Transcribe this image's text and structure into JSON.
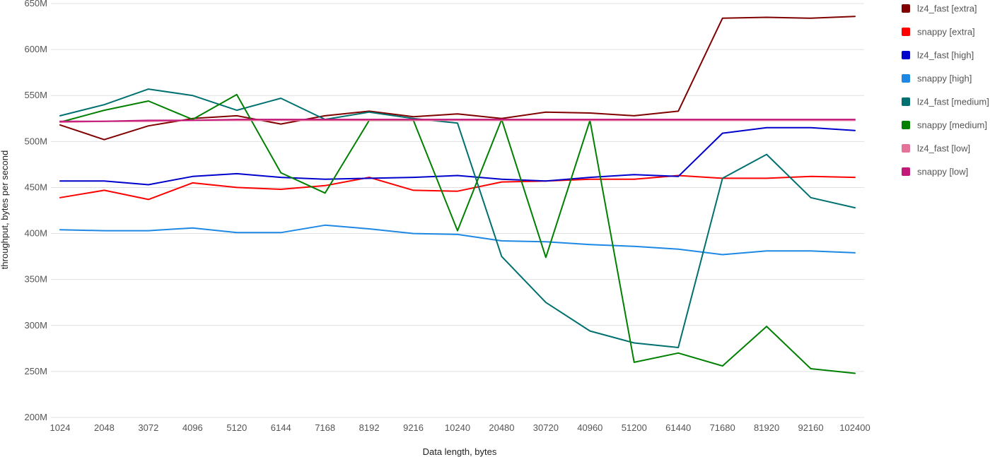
{
  "chart_data": {
    "type": "line",
    "title": "",
    "xlabel": "Data length, bytes",
    "ylabel": "throughput, bytes per second",
    "ylim": [
      200,
      650
    ],
    "y_unit_suffix": "M",
    "y_ticks": [
      200,
      250,
      300,
      350,
      400,
      450,
      500,
      550,
      600,
      650
    ],
    "y_tick_labels": [
      "200M",
      "250M",
      "300M",
      "350M",
      "400M",
      "450M",
      "500M",
      "550M",
      "600M",
      "650M"
    ],
    "grid": true,
    "legend_position": "right",
    "categories": [
      "1024",
      "2048",
      "3072",
      "4096",
      "5120",
      "6144",
      "7168",
      "8192",
      "9216",
      "10240",
      "20480",
      "30720",
      "40960",
      "51200",
      "61440",
      "71680",
      "81920",
      "92160",
      "102400"
    ],
    "series": [
      {
        "name": "lz4_fast [extra]",
        "color": "#800000",
        "values": [
          518,
          502,
          517,
          525,
          528,
          519,
          528,
          533,
          527,
          530,
          525,
          532,
          531,
          528,
          533,
          634,
          635,
          634,
          636
        ]
      },
      {
        "name": "snappy [extra]",
        "color": "#ff0000",
        "values": [
          439,
          447,
          437,
          455,
          450,
          448,
          452,
          461,
          447,
          446,
          456,
          457,
          459,
          459,
          463,
          460,
          460,
          462,
          461
        ]
      },
      {
        "name": "lz4_fast [high]",
        "color": "#0000cc",
        "values": [
          457,
          457,
          453,
          462,
          465,
          461,
          459,
          460,
          461,
          463,
          459,
          457,
          461,
          464,
          462,
          509,
          515,
          515,
          512
        ]
      },
      {
        "name": "snappy [high]",
        "color": "#1e88e5",
        "values": [
          404,
          403,
          403,
          406,
          401,
          401,
          409,
          405,
          400,
          399,
          392,
          391,
          388,
          386,
          383,
          377,
          381,
          381,
          379
        ]
      },
      {
        "name": "lz4_fast [medium]",
        "color": "#007070",
        "values": [
          528,
          540,
          557,
          550,
          534,
          547,
          524,
          532,
          525,
          520,
          375,
          325,
          294,
          281,
          276,
          460,
          486,
          439,
          428
        ]
      },
      {
        "name": "snappy [medium]",
        "color": "#008000",
        "values": [
          521,
          534,
          544,
          524,
          551,
          466,
          444,
          523,
          523,
          403,
          524,
          374,
          523,
          260,
          270,
          256,
          299,
          253,
          248
        ]
      },
      {
        "name": "lz4_fast [low]",
        "color": "#e57399",
        "values": [
          521,
          522,
          522,
          523,
          523,
          523,
          523,
          523,
          523,
          523,
          523,
          523,
          523,
          523,
          523,
          523,
          523,
          523,
          523
        ]
      },
      {
        "name": "snappy [low]",
        "color": "#c2187a",
        "values": [
          522,
          522,
          523,
          523,
          524,
          524,
          524,
          524,
          524,
          524,
          524,
          524,
          524,
          524,
          524,
          524,
          524,
          524,
          524
        ]
      }
    ]
  }
}
